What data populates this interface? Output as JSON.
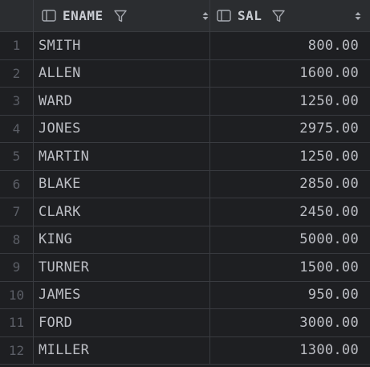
{
  "columns": [
    {
      "label": "ENAME"
    },
    {
      "label": "SAL"
    }
  ],
  "rows": [
    {
      "num": "1",
      "ename": "SMITH",
      "sal": "800.00"
    },
    {
      "num": "2",
      "ename": "ALLEN",
      "sal": "1600.00"
    },
    {
      "num": "3",
      "ename": "WARD",
      "sal": "1250.00"
    },
    {
      "num": "4",
      "ename": "JONES",
      "sal": "2975.00"
    },
    {
      "num": "5",
      "ename": "MARTIN",
      "sal": "1250.00"
    },
    {
      "num": "6",
      "ename": "BLAKE",
      "sal": "2850.00"
    },
    {
      "num": "7",
      "ename": "CLARK",
      "sal": "2450.00"
    },
    {
      "num": "8",
      "ename": "KING",
      "sal": "5000.00"
    },
    {
      "num": "9",
      "ename": "TURNER",
      "sal": "1500.00"
    },
    {
      "num": "10",
      "ename": "JAMES",
      "sal": "950.00"
    },
    {
      "num": "11",
      "ename": "FORD",
      "sal": "3000.00"
    },
    {
      "num": "12",
      "ename": "MILLER",
      "sal": "1300.00"
    }
  ],
  "icons": {
    "column": "column-icon",
    "filter": "filter-icon",
    "sort": "sort-icon"
  },
  "colors": {
    "background": "#1e1f22",
    "header_background": "#2b2d30",
    "grid_line": "#393b40",
    "text": "#bcbec4",
    "row_number": "#5b5e66"
  }
}
